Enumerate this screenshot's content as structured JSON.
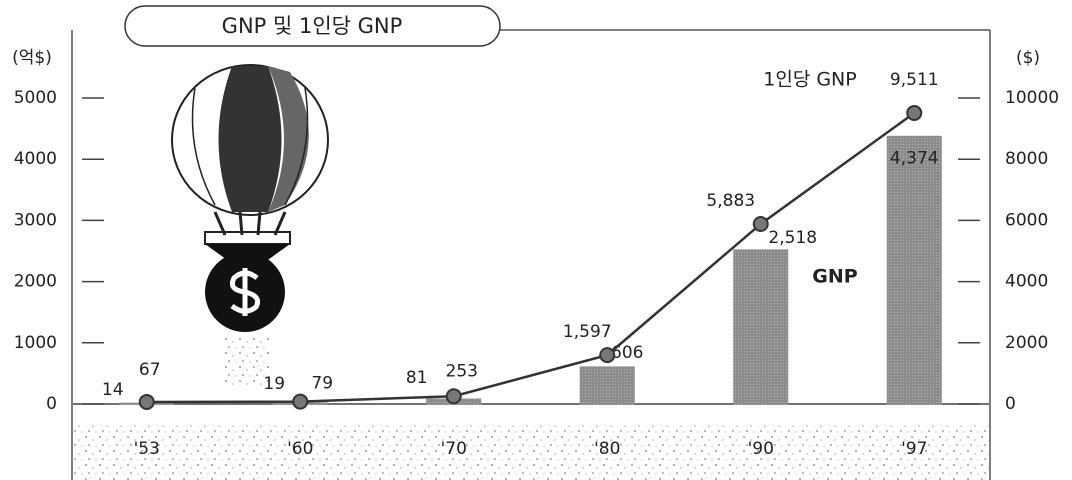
{
  "chart_data": {
    "type": "bar",
    "title": "GNP 및 1인당 GNP",
    "y_label": "(억$)",
    "y2_label": "($)",
    "categories": [
      "'53",
      "'60",
      "'70",
      "'80",
      "'90",
      "'97"
    ],
    "series": [
      {
        "name": "GNP",
        "type": "bar",
        "color": "#8c8c8c",
        "values": [
          14,
          19,
          81,
          606,
          2518,
          4374
        ],
        "value_labels": [
          "14",
          "19",
          "81",
          "606",
          "2,518",
          "4,374"
        ]
      },
      {
        "name": "1인당 GNP",
        "type": "line",
        "axis": "y2",
        "color": "#333333",
        "values": [
          67,
          79,
          253,
          1597,
          5883,
          9511
        ],
        "value_labels": [
          "67",
          "79",
          "253",
          "1,597",
          "5,883",
          "9,511"
        ]
      }
    ],
    "ylim": [
      0,
      5000
    ],
    "yticks": [
      0,
      1000,
      2000,
      3000,
      4000,
      5000
    ],
    "y2lim": [
      0,
      10000
    ],
    "y2ticks": [
      0,
      2000,
      4000,
      6000,
      8000,
      10000
    ],
    "grid": false
  }
}
